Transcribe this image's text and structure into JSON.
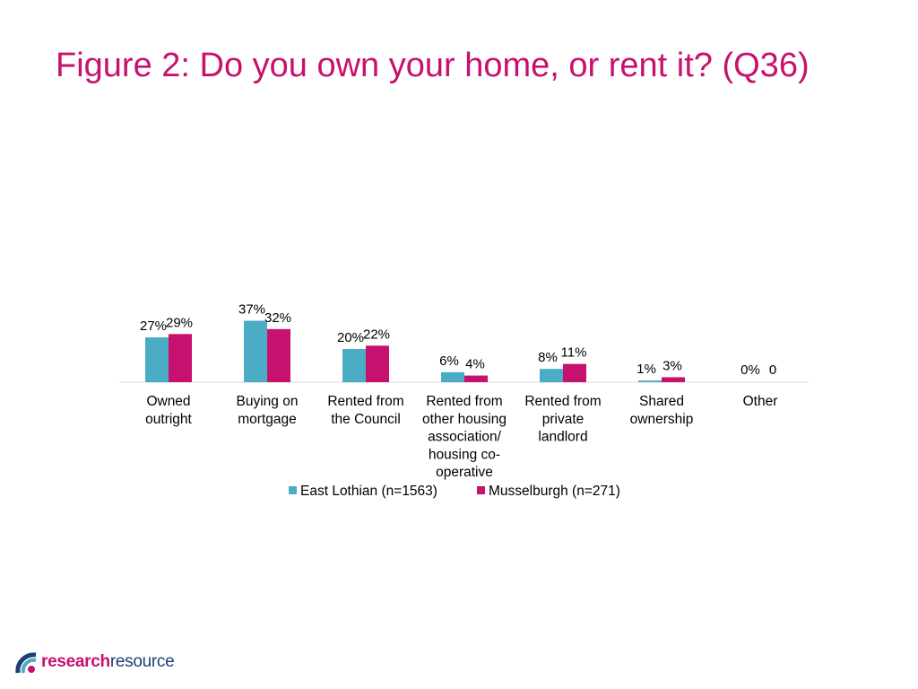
{
  "page": {
    "title": "Figure 2: Do you own your home, or rent it? (Q36)"
  },
  "logo": {
    "part1": "research",
    "part2": "resource"
  },
  "colors": {
    "title": "#c8106e",
    "east_lothian": "#4bacc6",
    "musselburgh": "#c8106e",
    "axis": "#d9d9d9",
    "text": "#000000"
  },
  "chart_data": {
    "type": "bar",
    "title": "",
    "xlabel": "",
    "ylabel": "",
    "ylim": [
      0,
      40
    ],
    "grid": false,
    "legend_position": "bottom",
    "categories": [
      [
        "Owned",
        "outright"
      ],
      [
        "Buying on",
        "mortgage"
      ],
      [
        "Rented from",
        "the Council"
      ],
      [
        "Rented from",
        "other housing",
        "association/",
        "housing co-",
        "operative"
      ],
      [
        "Rented from",
        "private",
        "landlord"
      ],
      [
        "Shared",
        "ownership"
      ],
      [
        "Other"
      ]
    ],
    "series": [
      {
        "name": "East Lothian (n=1563)",
        "color": "#4bacc6",
        "values": [
          27,
          37,
          20,
          6,
          8,
          1,
          0
        ],
        "labels": [
          "27%",
          "37%",
          "20%",
          "6%",
          "8%",
          "1%",
          "0%"
        ]
      },
      {
        "name": "Musselburgh (n=271)",
        "color": "#c8106e",
        "values": [
          29,
          32,
          22,
          4,
          11,
          3,
          0
        ],
        "labels": [
          "29%",
          "32%",
          "22%",
          "4%",
          "11%",
          "3%",
          "0"
        ]
      }
    ]
  }
}
